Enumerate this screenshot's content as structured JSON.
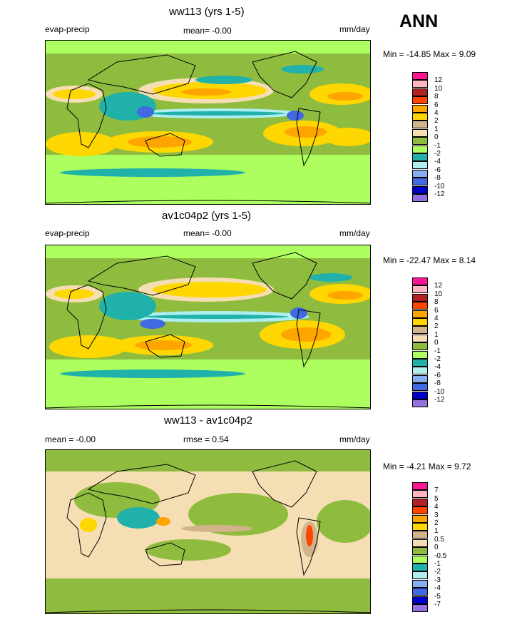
{
  "season": "ANN",
  "panels": [
    {
      "title": "ww113 (yrs 1-5)",
      "left_label": "evap-precip",
      "mean_text": "mean=  -0.00",
      "units": "mm/day",
      "minmax": "Min = -14.85 Max =   9.09",
      "colorbar": {
        "labels": [
          "12",
          "10",
          "8",
          "6",
          "4",
          "2",
          "1",
          "0",
          "-1",
          "-2",
          "-4",
          "-6",
          "-8",
          "-10",
          "-12"
        ],
        "colors": [
          "#ff1493",
          "#ffb6c1",
          "#b22222",
          "#ff4500",
          "#ffa500",
          "#ffd700",
          "#d2b48c",
          "#f5deb3",
          "#8fbc3f",
          "#adff5f",
          "#20b2aa",
          "#afeeee",
          "#87aeee",
          "#4169e1",
          "#0000cd",
          "#9370db"
        ]
      },
      "chart_data": {
        "type": "heatmap",
        "field": "evap-precip",
        "units": "mm/day",
        "mean": -0.0,
        "min": -14.85,
        "max": 9.09,
        "levels": [
          -12,
          -10,
          -8,
          -6,
          -4,
          -2,
          -1,
          0,
          1,
          2,
          4,
          6,
          8,
          10,
          12
        ]
      }
    },
    {
      "title": "av1c04p2 (yrs 1-5)",
      "left_label": "evap-precip",
      "mean_text": "mean=  -0.00",
      "units": "mm/day",
      "minmax": "Min = -22.47 Max =   8.14",
      "colorbar": {
        "labels": [
          "12",
          "10",
          "8",
          "6",
          "4",
          "2",
          "1",
          "0",
          "-1",
          "-2",
          "-4",
          "-6",
          "-8",
          "-10",
          "-12"
        ],
        "colors": [
          "#ff1493",
          "#ffb6c1",
          "#b22222",
          "#ff4500",
          "#ffa500",
          "#ffd700",
          "#d2b48c",
          "#f5deb3",
          "#8fbc3f",
          "#adff5f",
          "#20b2aa",
          "#afeeee",
          "#87aeee",
          "#4169e1",
          "#0000cd",
          "#9370db"
        ]
      },
      "chart_data": {
        "type": "heatmap",
        "field": "evap-precip",
        "units": "mm/day",
        "mean": -0.0,
        "min": -22.47,
        "max": 8.14,
        "levels": [
          -12,
          -10,
          -8,
          -6,
          -4,
          -2,
          -1,
          0,
          1,
          2,
          4,
          6,
          8,
          10,
          12
        ]
      }
    },
    {
      "title": "ww113 - av1c04p2",
      "left_label": "mean =  -0.00",
      "mean_text": "rmse =   0.54",
      "units": "mm/day",
      "minmax": "Min =  -4.21 Max =   9.72",
      "colorbar": {
        "labels": [
          "7",
          "5",
          "4",
          "3",
          "2",
          "1",
          "0.5",
          "0",
          "-0.5",
          "-1",
          "-2",
          "-3",
          "-4",
          "-5",
          "-7"
        ],
        "colors": [
          "#ff1493",
          "#ffb6c1",
          "#b22222",
          "#ff4500",
          "#ffa500",
          "#ffd700",
          "#d2b48c",
          "#f5deb3",
          "#8fbc3f",
          "#adff5f",
          "#20b2aa",
          "#afeeee",
          "#87aeee",
          "#4169e1",
          "#0000cd",
          "#9370db"
        ]
      },
      "chart_data": {
        "type": "heatmap",
        "field": "difference",
        "units": "mm/day",
        "mean": -0.0,
        "rmse": 0.54,
        "min": -4.21,
        "max": 9.72,
        "levels": [
          -7,
          -5,
          -4,
          -3,
          -2,
          -1,
          -0.5,
          0,
          0.5,
          1,
          2,
          3,
          4,
          5,
          7
        ]
      }
    }
  ]
}
